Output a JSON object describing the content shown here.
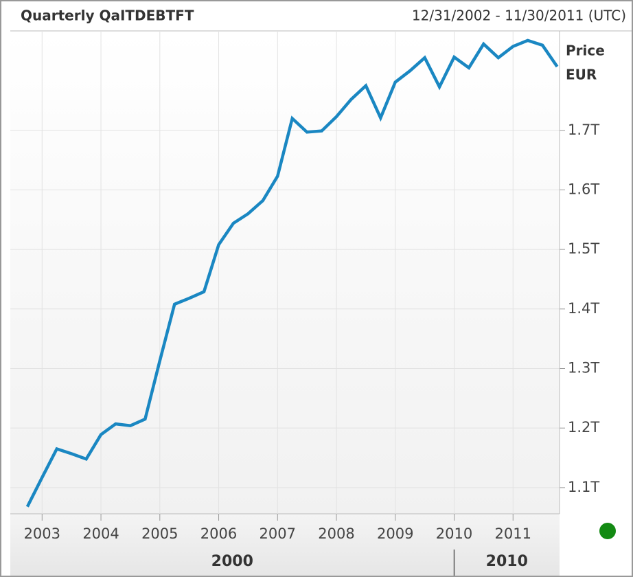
{
  "chart_data": {
    "type": "line",
    "title": "Quarterly QaITDEBTFT",
    "date_range": "12/31/2002 - 11/30/2011 (UTC)",
    "y_label": "Price",
    "y_unit": "EUR",
    "x": [
      2002.75,
      2003,
      2003.25,
      2003.5,
      2003.75,
      2004,
      2004.25,
      2004.5,
      2004.75,
      2005,
      2005.25,
      2005.5,
      2005.75,
      2006,
      2006.25,
      2006.5,
      2006.75,
      2007,
      2007.25,
      2007.5,
      2007.75,
      2008,
      2008.25,
      2008.5,
      2008.75,
      2009,
      2009.25,
      2009.5,
      2009.75,
      2010,
      2010.25,
      2010.5,
      2010.75,
      2011,
      2011.25,
      2011.5,
      2011.75
    ],
    "series": [
      {
        "name": "QaITDEBTFT",
        "color": "#1a87c2",
        "values": [
          1.068,
          1.117,
          1.165,
          1.157,
          1.148,
          1.189,
          1.207,
          1.204,
          1.215,
          1.313,
          1.408,
          1.418,
          1.429,
          1.508,
          1.544,
          1.56,
          1.582,
          1.623,
          1.72,
          1.697,
          1.699,
          1.723,
          1.752,
          1.775,
          1.721,
          1.781,
          1.8,
          1.822,
          1.773,
          1.823,
          1.805,
          1.845,
          1.822,
          1.841,
          1.851,
          1.843,
          1.807
        ]
      }
    ],
    "xlim": [
      2002.46,
      2011.79
    ],
    "xticks": [
      2003,
      2004,
      2005,
      2006,
      2007,
      2008,
      2009,
      2010,
      2011
    ],
    "x_groups": [
      {
        "value": 2000,
        "label": "2000"
      },
      {
        "value": 2010,
        "label": "2010"
      }
    ],
    "ylim": [
      1.056,
      1.867
    ],
    "yticks": [
      {
        "value": 1.1,
        "label": "1.1T"
      },
      {
        "value": 1.2,
        "label": "1.2T"
      },
      {
        "value": 1.3,
        "label": "1.3T"
      },
      {
        "value": 1.4,
        "label": "1.4T"
      },
      {
        "value": 1.5,
        "label": "1.5T"
      },
      {
        "value": 1.6,
        "label": "1.6T"
      },
      {
        "value": 1.7,
        "label": "1.7T"
      }
    ],
    "grid": true
  }
}
